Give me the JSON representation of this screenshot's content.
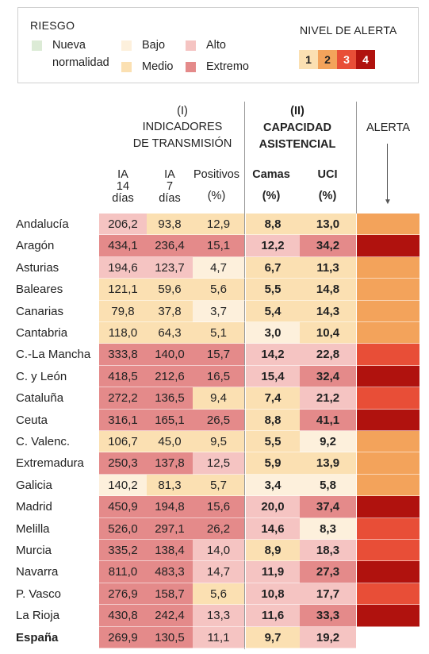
{
  "legend": {
    "riesgo_title": "RIESGO",
    "items": [
      {
        "line1": "Nueva",
        "line2": "normalidad",
        "color": "#dcebd6"
      },
      {
        "line1": "Bajo",
        "line2": "",
        "color": "#fdf0dc"
      },
      {
        "line1": "Medio",
        "line2": "",
        "color": "#fbe0b2"
      },
      {
        "line1": "Alto",
        "line2": "",
        "color": "#f5c4c2"
      },
      {
        "line1": "Extremo",
        "line2": "",
        "color": "#e48a8a"
      }
    ],
    "alert_title": "NIVEL DE ALERTA",
    "levels": [
      {
        "label": "1",
        "color": "#fbe0b2",
        "text_color": "#222222"
      },
      {
        "label": "2",
        "color": "#f3a35b",
        "text_color": "#222222"
      },
      {
        "label": "3",
        "color": "#e84e37",
        "text_color": "#ffffff"
      },
      {
        "label": "4",
        "color": "#b0120e",
        "text_color": "#ffffff"
      }
    ]
  },
  "header": {
    "group1_num": "(I)",
    "group1_line1": "INDICADORES",
    "group1_line2": "DE TRANSMISIÓN",
    "group2_num": "(II)",
    "group2_line1": "CAPACIDAD",
    "group2_line2": "ASISTENCIAL",
    "alert_label": "ALERTA",
    "col_ia14": [
      "IA",
      "14",
      "días"
    ],
    "col_ia7": [
      "IA",
      "7",
      "días"
    ],
    "col_pos": [
      "Positivos",
      "(%)"
    ],
    "col_camas": [
      "Camas",
      "(%)"
    ],
    "col_uci": [
      "UCI",
      "(%)"
    ]
  },
  "colors": {
    "low": "#fdf0dc",
    "medium": "#fbe0b2",
    "high": "#f5c4c2",
    "extreme": "#e48a8a",
    "alert2": "#f3a35b",
    "alert3": "#e84e37",
    "alert4": "#b0120e"
  },
  "chart_data": {
    "type": "table",
    "columns": [
      "IA 14 días",
      "IA 7 días",
      "Positivos (%)",
      "Camas (%)",
      "UCI (%)",
      "Alerta"
    ],
    "rows": [
      {
        "name": "Andalucía",
        "values": [
          "206,2",
          "93,8",
          "12,9",
          "8,8",
          "13,0"
        ],
        "risk": [
          "high",
          "medium",
          "medium",
          "medium",
          "medium"
        ],
        "alert": 2
      },
      {
        "name": "Aragón",
        "values": [
          "434,1",
          "236,4",
          "15,1",
          "12,2",
          "34,2"
        ],
        "risk": [
          "extreme",
          "extreme",
          "extreme",
          "high",
          "extreme"
        ],
        "alert": 4
      },
      {
        "name": "Asturias",
        "values": [
          "194,6",
          "123,7",
          "4,7",
          "6,7",
          "11,3"
        ],
        "risk": [
          "high",
          "high",
          "low",
          "medium",
          "medium"
        ],
        "alert": 2
      },
      {
        "name": "Baleares",
        "values": [
          "121,1",
          "59,6",
          "5,6",
          "5,5",
          "14,8"
        ],
        "risk": [
          "medium",
          "medium",
          "medium",
          "medium",
          "medium"
        ],
        "alert": 2
      },
      {
        "name": "Canarias",
        "values": [
          "79,8",
          "37,8",
          "3,7",
          "5,4",
          "14,3"
        ],
        "risk": [
          "medium",
          "medium",
          "low",
          "medium",
          "medium"
        ],
        "alert": 2
      },
      {
        "name": "Cantabria",
        "values": [
          "118,0",
          "64,3",
          "5,1",
          "3,0",
          "10,4"
        ],
        "risk": [
          "medium",
          "medium",
          "medium",
          "low",
          "medium"
        ],
        "alert": 2
      },
      {
        "name": "C.-La Mancha",
        "values": [
          "333,8",
          "140,0",
          "15,7",
          "14,2",
          "22,8"
        ],
        "risk": [
          "extreme",
          "extreme",
          "extreme",
          "high",
          "high"
        ],
        "alert": 3
      },
      {
        "name": "C. y León",
        "values": [
          "418,5",
          "212,6",
          "16,5",
          "15,4",
          "32,4"
        ],
        "risk": [
          "extreme",
          "extreme",
          "extreme",
          "high",
          "extreme"
        ],
        "alert": 4
      },
      {
        "name": "Cataluña",
        "values": [
          "272,2",
          "136,5",
          "9,4",
          "7,4",
          "21,2"
        ],
        "risk": [
          "extreme",
          "extreme",
          "medium",
          "medium",
          "high"
        ],
        "alert": 3
      },
      {
        "name": "Ceuta",
        "values": [
          "316,1",
          "165,1",
          "26,5",
          "8,8",
          "41,1"
        ],
        "risk": [
          "extreme",
          "extreme",
          "extreme",
          "medium",
          "extreme"
        ],
        "alert": 4
      },
      {
        "name": "C. Valenc.",
        "values": [
          "106,7",
          "45,0",
          "9,5",
          "5,5",
          "9,2"
        ],
        "risk": [
          "medium",
          "medium",
          "medium",
          "medium",
          "low"
        ],
        "alert": 2
      },
      {
        "name": "Extremadura",
        "values": [
          "250,3",
          "137,8",
          "12,5",
          "5,9",
          "13,9"
        ],
        "risk": [
          "extreme",
          "extreme",
          "high",
          "medium",
          "medium"
        ],
        "alert": 2
      },
      {
        "name": "Galicia",
        "values": [
          "140,2",
          "81,3",
          "5,7",
          "3,4",
          "5,8"
        ],
        "risk": [
          "low",
          "medium",
          "medium",
          "low",
          "low"
        ],
        "alert": 2
      },
      {
        "name": "Madrid",
        "values": [
          "450,9",
          "194,8",
          "15,6",
          "20,0",
          "37,4"
        ],
        "risk": [
          "extreme",
          "extreme",
          "extreme",
          "high",
          "extreme"
        ],
        "alert": 4
      },
      {
        "name": "Melilla",
        "values": [
          "526,0",
          "297,1",
          "26,2",
          "14,6",
          "8,3"
        ],
        "risk": [
          "extreme",
          "extreme",
          "extreme",
          "high",
          "low"
        ],
        "alert": 3
      },
      {
        "name": "Murcia",
        "values": [
          "335,2",
          "138,4",
          "14,0",
          "8,9",
          "18,3"
        ],
        "risk": [
          "extreme",
          "extreme",
          "high",
          "medium",
          "high"
        ],
        "alert": 3
      },
      {
        "name": "Navarra",
        "values": [
          "811,0",
          "483,3",
          "14,7",
          "11,9",
          "27,3"
        ],
        "risk": [
          "extreme",
          "extreme",
          "high",
          "high",
          "extreme"
        ],
        "alert": 4
      },
      {
        "name": "P. Vasco",
        "values": [
          "276,9",
          "158,7",
          "5,6",
          "10,8",
          "17,7"
        ],
        "risk": [
          "extreme",
          "extreme",
          "medium",
          "high",
          "high"
        ],
        "alert": 3
      },
      {
        "name": "La Rioja",
        "values": [
          "430,8",
          "242,4",
          "13,3",
          "11,6",
          "33,3"
        ],
        "risk": [
          "extreme",
          "extreme",
          "high",
          "high",
          "extreme"
        ],
        "alert": 4
      },
      {
        "name": "España",
        "values": [
          "269,9",
          "130,5",
          "11,1",
          "9,7",
          "19,2"
        ],
        "risk": [
          "extreme",
          "extreme",
          "high",
          "medium",
          "high"
        ],
        "alert": 0,
        "total": true
      }
    ]
  }
}
